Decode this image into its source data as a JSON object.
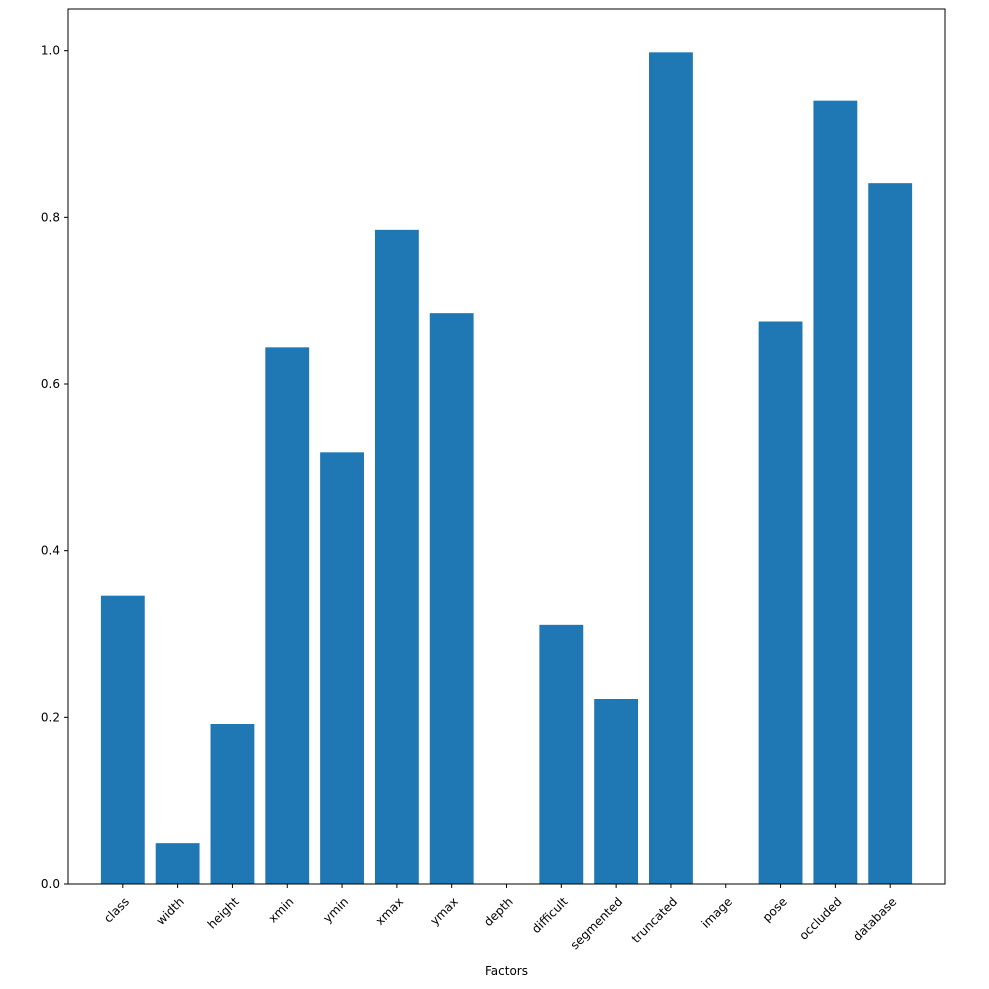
{
  "chart_data": {
    "type": "bar",
    "categories": [
      "class",
      "width",
      "height",
      "xmin",
      "ymin",
      "xmax",
      "ymax",
      "depth",
      "difficult",
      "segmented",
      "truncated",
      "image",
      "pose",
      "occluded",
      "database"
    ],
    "values": [
      0.346,
      0.049,
      0.192,
      0.644,
      0.518,
      0.785,
      0.685,
      0.0,
      0.311,
      0.222,
      0.998,
      0.0,
      0.675,
      0.94,
      0.841
    ],
    "title": "",
    "xlabel": "Factors",
    "ylabel": "",
    "ylim": [
      0,
      1.05
    ],
    "yticks": [
      "0.0",
      "0.2",
      "0.4",
      "0.6",
      "0.8",
      "1.0"
    ],
    "ytick_values": [
      0.0,
      0.2,
      0.4,
      0.6,
      0.8,
      1.0
    ],
    "bar_color": "#1f77b4",
    "grid": false,
    "legend": "none"
  }
}
